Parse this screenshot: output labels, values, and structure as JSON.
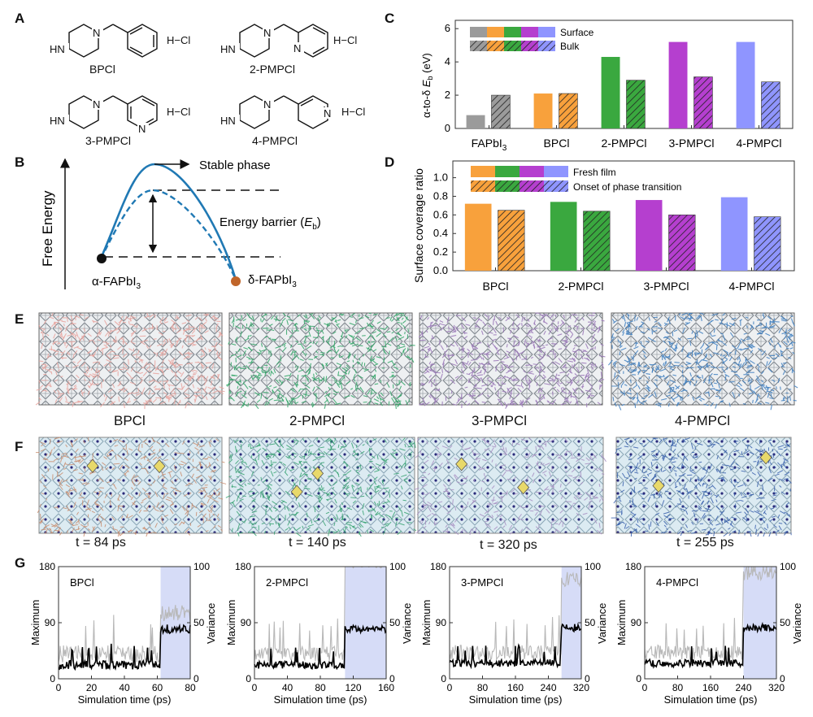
{
  "panels": {
    "A": {
      "letter": "A",
      "molecules": [
        {
          "name": "BPCl",
          "salt": "H−Cl",
          "ring_N": "",
          "NH": "HN",
          "N": "N"
        },
        {
          "name": "2-PMPCl",
          "salt": "H−Cl",
          "ring_N": "N",
          "NH": "HN",
          "N": "N"
        },
        {
          "name": "3-PMPCl",
          "salt": "H−Cl",
          "ring_N": "N",
          "NH": "HN",
          "N": "N"
        },
        {
          "name": "4-PMPCl",
          "salt": "H−Cl",
          "ring_N": "N",
          "NH": "HN",
          "N": "N"
        }
      ]
    },
    "B": {
      "letter": "B",
      "ylabel": "Free Energy",
      "stable": "Stable phase",
      "barrier_prefix": "Energy barrier (",
      "barrier_sym": "E",
      "barrier_sub": "b",
      "barrier_suffix": ")",
      "alpha": "α-FAPbI",
      "delta": "δ-FAPbI",
      "sub3": "3"
    },
    "C": {
      "letter": "C"
    },
    "D": {
      "letter": "D"
    },
    "E": {
      "letter": "E",
      "labels": [
        "BPCl",
        "2-PMPCl",
        "3-PMPCl",
        "4-PMPCl"
      ],
      "colors": [
        "#e9a6a0",
        "#35a76a",
        "#9a78b8",
        "#3f7fc0"
      ]
    },
    "F": {
      "letter": "F",
      "labels": [
        "t = 84 ps",
        "t = 140 ps",
        "t = 320 ps",
        "t = 255 ps"
      ],
      "colors": [
        "#c98a6a",
        "#2f9f6c",
        "#a58bc0",
        "#2f58a8"
      ]
    },
    "G": {
      "letter": "G"
    }
  },
  "chart_data": [
    {
      "id": "C",
      "type": "bar",
      "ylabel": "α-to-δ E_b (eV)",
      "ylabel_parts": {
        "pre": "α-to-δ ",
        "sym": "E",
        "sub": "b",
        "post": " (eV)"
      },
      "categories": [
        "FAPbI3",
        "BPCl",
        "2-PMPCl",
        "3-PMPCl",
        "4-PMPCl"
      ],
      "category_labels": {
        "FAPbI3": {
          "main": "FAPbI",
          "sub": "3"
        }
      },
      "ylim": [
        0,
        6.5
      ],
      "yticks": [
        0,
        2,
        4,
        6
      ],
      "colors": [
        "#9b9b9b",
        "#f8a13c",
        "#3aa83f",
        "#b53fcf",
        "#8f95ff"
      ],
      "series": [
        {
          "name": "Surface",
          "style": "solid",
          "values": [
            0.8,
            2.1,
            4.3,
            5.2,
            5.2
          ]
        },
        {
          "name": "Bulk",
          "style": "hatched",
          "values": [
            2.0,
            2.1,
            2.9,
            3.1,
            2.8
          ]
        }
      ],
      "legend": "top-left"
    },
    {
      "id": "D",
      "type": "bar",
      "ylabel": "Surface coverage ratio",
      "categories": [
        "BPCl",
        "2-PMPCl",
        "3-PMPCl",
        "4-PMPCl"
      ],
      "ylim": [
        0,
        1.18
      ],
      "yticks": [
        0.0,
        0.2,
        0.4,
        0.6,
        0.8,
        1.0
      ],
      "colors": [
        "#f8a13c",
        "#3aa83f",
        "#b53fcf",
        "#8f95ff"
      ],
      "series": [
        {
          "name": "Fresh film",
          "style": "solid",
          "values": [
            0.72,
            0.74,
            0.76,
            0.79
          ]
        },
        {
          "name": "Onset of phase transition",
          "style": "hatched",
          "values": [
            0.65,
            0.64,
            0.6,
            0.58
          ]
        }
      ],
      "legend": "top-left"
    },
    {
      "id": "G1",
      "type": "line",
      "title": "BPCl",
      "xlabel": "Simulation time (ps)",
      "ylabel": "Maximum",
      "y2label": "Variance",
      "xlim": [
        0,
        80
      ],
      "xticks": [
        0,
        20,
        40,
        60,
        80
      ],
      "ylim": [
        0,
        180
      ],
      "yticks": [
        0,
        90,
        180
      ],
      "y2lim": [
        0,
        100
      ],
      "y2ticks": [
        0,
        50,
        100
      ],
      "transition": 62,
      "series": [
        {
          "name": "Maximum",
          "color": "#000",
          "before": 22,
          "after": 80,
          "noise": 7
        },
        {
          "name": "Variance",
          "color": "#b8b8b8",
          "before": 40,
          "after": 105,
          "noise": 14
        }
      ]
    },
    {
      "id": "G2",
      "type": "line",
      "title": "2-PMPCl",
      "xlabel": "Simulation time (ps)",
      "ylabel": "Maximum",
      "y2label": "Variance",
      "xlim": [
        0,
        160
      ],
      "xticks": [
        0,
        40,
        80,
        120,
        160
      ],
      "ylim": [
        0,
        180
      ],
      "yticks": [
        0,
        90,
        180
      ],
      "y2lim": [
        0,
        100
      ],
      "y2ticks": [
        0,
        50,
        100
      ],
      "transition": 110,
      "series": [
        {
          "name": "Maximum",
          "color": "#000",
          "before": 22,
          "after": 80,
          "noise": 6
        },
        {
          "name": "Variance",
          "color": "#b8b8b8",
          "before": 40,
          "after": 190,
          "noise": 12
        }
      ]
    },
    {
      "id": "G3",
      "type": "line",
      "title": "3-PMPCl",
      "xlabel": "Simulation time (ps)",
      "ylabel": "Maximum",
      "y2label": "Variance",
      "xlim": [
        0,
        320
      ],
      "xticks": [
        0,
        80,
        160,
        240,
        320
      ],
      "ylim": [
        0,
        180
      ],
      "yticks": [
        0,
        90,
        180
      ],
      "y2lim": [
        0,
        100
      ],
      "y2ticks": [
        0,
        50,
        100
      ],
      "transition": 272,
      "series": [
        {
          "name": "Maximum",
          "color": "#000",
          "before": 25,
          "after": 82,
          "noise": 6
        },
        {
          "name": "Variance",
          "color": "#b8b8b8",
          "before": 42,
          "after": 160,
          "noise": 12
        }
      ]
    },
    {
      "id": "G4",
      "type": "line",
      "title": "4-PMPCl",
      "xlabel": "Simulation time (ps)",
      "ylabel": "Maximum",
      "y2label": "Variance",
      "xlim": [
        0,
        320
      ],
      "xticks": [
        0,
        80,
        160,
        240,
        320
      ],
      "ylim": [
        0,
        180
      ],
      "yticks": [
        0,
        90,
        180
      ],
      "y2lim": [
        0,
        100
      ],
      "y2ticks": [
        0,
        50,
        100
      ],
      "transition": 240,
      "series": [
        {
          "name": "Maximum",
          "color": "#000",
          "before": 25,
          "after": 82,
          "noise": 6
        },
        {
          "name": "Variance",
          "color": "#b8b8b8",
          "before": 42,
          "after": 170,
          "noise": 12
        }
      ]
    }
  ]
}
